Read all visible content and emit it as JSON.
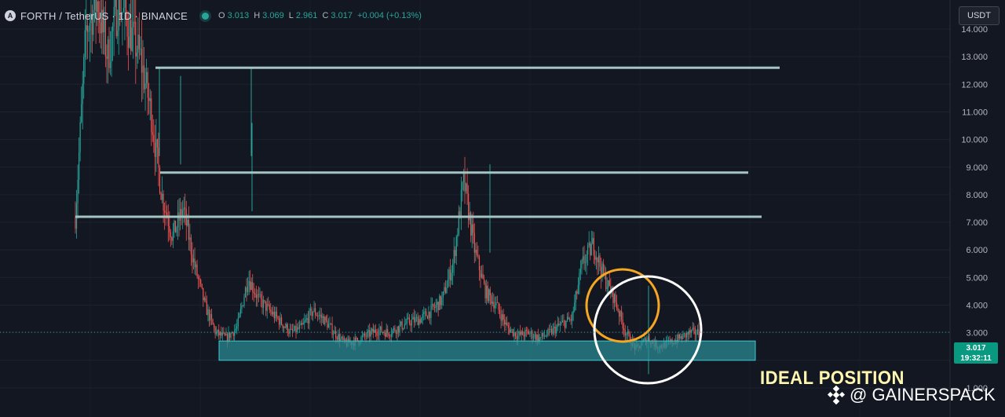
{
  "header": {
    "symbol_title": "FORTH / TetherUS · 1D · BINANCE",
    "ohlc": {
      "o_label": "O",
      "o_value": "3.013",
      "h_label": "H",
      "h_value": "3.069",
      "l_label": "L",
      "l_value": "2.961",
      "c_label": "C",
      "c_value": "3.017",
      "change": "+0.004 (+0.13%)"
    },
    "currency": "USDT"
  },
  "price_tag": {
    "price": "3.017",
    "countdown": "19:32:11"
  },
  "annotation": "IDEAL POSITION",
  "watermark": "@ GAINERSPACK",
  "colors": {
    "background": "#131722",
    "up": "#26a69a",
    "down": "#ef5350",
    "level_lines": "#a3c4c2",
    "zone_fill": "#2a8a93",
    "orange_circle": "#f5a623",
    "white_circle": "#ffffff",
    "annotation": "#fff7b0"
  },
  "chart_data": {
    "type": "candlestick",
    "symbol": "FORTH / TetherUS",
    "interval": "1D",
    "exchange": "BINANCE",
    "y_axis_ticks": [
      "14.000",
      "13.000",
      "12.000",
      "11.000",
      "10.000",
      "9.000",
      "8.000",
      "7.000",
      "6.000",
      "5.000",
      "4.000",
      "3.000",
      "2.000",
      "1.000"
    ],
    "ylim": [
      0.6,
      15
    ],
    "last_price": 3.017,
    "horizontal_levels": [
      12.6,
      8.8,
      7.2
    ],
    "support_zone": [
      2.0,
      2.7
    ],
    "price_path": [
      [
        0,
        7.2
      ],
      [
        2,
        14
      ],
      [
        4,
        15
      ],
      [
        6,
        13
      ],
      [
        8,
        15
      ],
      [
        10,
        14
      ],
      [
        12,
        13
      ],
      [
        14,
        11
      ],
      [
        16,
        8
      ],
      [
        18,
        6.5
      ],
      [
        20,
        7.5
      ],
      [
        22,
        5.5
      ],
      [
        24,
        4
      ],
      [
        26,
        3
      ],
      [
        28,
        2.8
      ],
      [
        30,
        3.2
      ],
      [
        32,
        5
      ],
      [
        34,
        4.2
      ],
      [
        36,
        3.8
      ],
      [
        38,
        3.4
      ],
      [
        40,
        3.0
      ],
      [
        42,
        3.2
      ],
      [
        44,
        3.8
      ],
      [
        46,
        3.5
      ],
      [
        48,
        3.0
      ],
      [
        50,
        2.6
      ],
      [
        52,
        2.7
      ],
      [
        54,
        2.9
      ],
      [
        56,
        3.1
      ],
      [
        58,
        3.0
      ],
      [
        60,
        3.2
      ],
      [
        62,
        3.4
      ],
      [
        64,
        3.5
      ],
      [
        66,
        3.8
      ],
      [
        68,
        4.2
      ],
      [
        70,
        5.5
      ],
      [
        72,
        8.5
      ],
      [
        74,
        6.0
      ],
      [
        76,
        4.5
      ],
      [
        78,
        4.0
      ],
      [
        80,
        3.2
      ],
      [
        82,
        2.9
      ],
      [
        84,
        3.0
      ],
      [
        86,
        2.8
      ],
      [
        88,
        3.0
      ],
      [
        90,
        3.3
      ],
      [
        92,
        3.5
      ],
      [
        94,
        5.5
      ],
      [
        96,
        6.2
      ],
      [
        98,
        5.0
      ],
      [
        100,
        4.2
      ],
      [
        102,
        3.0
      ],
      [
        104,
        2.4
      ],
      [
        106,
        2.8
      ],
      [
        108,
        2.5
      ],
      [
        110,
        2.6
      ],
      [
        112,
        2.8
      ],
      [
        114,
        3.0
      ],
      [
        116,
        3.017
      ]
    ]
  }
}
